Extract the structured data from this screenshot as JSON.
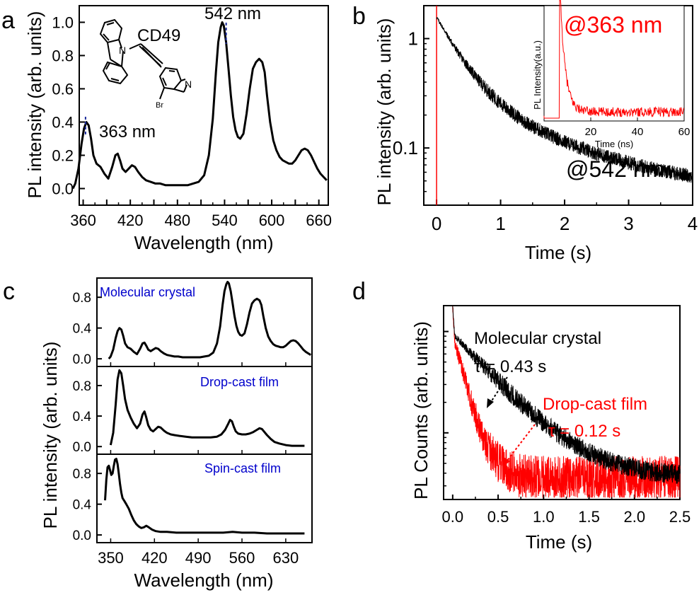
{
  "figure": {
    "panel_labels": [
      "a",
      "b",
      "c",
      "d"
    ]
  },
  "colors": {
    "ink": "#000000",
    "red": "#ff0000",
    "blue": "#0000cc",
    "dash_blue": "#1a2a9a"
  },
  "chart_data": [
    {
      "panel": "a",
      "type": "line",
      "title": "",
      "xlabel": "Wavelength (nm)",
      "ylabel": "PL intensity (arb. units)",
      "xlim": [
        355,
        672
      ],
      "ylim": [
        -0.1,
        1.1
      ],
      "xticks": [
        "360",
        "390",
        "420",
        "450",
        "480",
        "510",
        "540",
        "570",
        "600",
        "630",
        "660"
      ],
      "xtick_values": [
        360,
        390,
        420,
        450,
        480,
        510,
        540,
        570,
        600,
        630,
        660
      ],
      "xtick_labeled": [
        true,
        false,
        true,
        false,
        true,
        false,
        true,
        false,
        true,
        false,
        true
      ],
      "yticks": [
        "0.0",
        "0.2",
        "0.4",
        "0.6",
        "0.8",
        "1.0"
      ],
      "ytick_values": [
        0.0,
        0.2,
        0.4,
        0.6,
        0.8,
        1.0
      ],
      "x": [
        347,
        350,
        354,
        358,
        361,
        364,
        367,
        370,
        373,
        377,
        382,
        387,
        392,
        397,
        401,
        404,
        407,
        410,
        414,
        418,
        422,
        426,
        430,
        435,
        440,
        446,
        452,
        458,
        465,
        472,
        479,
        486,
        493,
        500,
        507,
        514,
        520,
        525,
        529,
        532,
        535,
        537,
        539,
        542,
        545,
        548,
        551,
        554,
        557,
        560,
        564,
        568,
        572,
        576,
        580,
        584,
        588,
        591,
        594,
        598,
        602,
        606,
        610,
        614,
        618,
        622,
        626,
        630,
        634,
        638,
        642,
        646,
        650,
        654,
        658,
        662,
        666,
        670
      ],
      "values": [
        0.0,
        0.03,
        0.12,
        0.27,
        0.36,
        0.4,
        0.38,
        0.3,
        0.2,
        0.15,
        0.13,
        0.09,
        0.06,
        0.13,
        0.2,
        0.21,
        0.17,
        0.12,
        0.1,
        0.12,
        0.14,
        0.13,
        0.1,
        0.07,
        0.05,
        0.04,
        0.03,
        0.03,
        0.02,
        0.02,
        0.02,
        0.02,
        0.02,
        0.03,
        0.04,
        0.08,
        0.2,
        0.42,
        0.7,
        0.88,
        0.97,
        1.0,
        0.98,
        0.88,
        0.72,
        0.56,
        0.43,
        0.35,
        0.31,
        0.3,
        0.33,
        0.45,
        0.6,
        0.72,
        0.76,
        0.78,
        0.76,
        0.7,
        0.56,
        0.4,
        0.29,
        0.23,
        0.19,
        0.17,
        0.16,
        0.15,
        0.15,
        0.17,
        0.2,
        0.23,
        0.24,
        0.23,
        0.2,
        0.16,
        0.12,
        0.09,
        0.07,
        0.05
      ],
      "annotations": [
        "542 nm",
        "363 nm",
        "CD49"
      ],
      "peak_markers_x": [
        363,
        542
      ],
      "molecule_atom_label_br": "Br",
      "molecule_atom_label_n1": "N",
      "molecule_atom_label_n2": "N"
    },
    {
      "panel": "b",
      "type": "line",
      "title": "",
      "xlabel": "Time (s)",
      "ylabel": "PL intensity (arb. units)",
      "yscale": "log",
      "xlim": [
        -0.2,
        4.0
      ],
      "ylim": [
        0.03,
        2.0
      ],
      "xticks": [
        "0",
        "1",
        "2",
        "3",
        "4"
      ],
      "xtick_values": [
        0,
        1,
        2,
        3,
        4
      ],
      "yticks": [
        "0.1",
        "1"
      ],
      "ytick_values": [
        0.1,
        1
      ],
      "series": [
        {
          "name": "@542 nm",
          "color": "#000000",
          "decay": {
            "a1": 1.24,
            "tau1": 0.35,
            "a2": 0.3,
            "tau2": 1.4,
            "offset": 0.038
          },
          "noise": 0.3
        },
        {
          "name": "@363 nm",
          "color": "#ff0000",
          "spike_at": 0.0
        }
      ],
      "annotations": [
        "@542 nm"
      ],
      "inset": {
        "xlabel": "Time (ns)",
        "ylabel": "PL Intensity(a.u.)",
        "xlim": [
          0,
          60
        ],
        "xticks": [
          "0",
          "20",
          "40",
          "60"
        ],
        "xtick_values": [
          0,
          20,
          40,
          60
        ],
        "label": "@363 nm",
        "decay": {
          "t0": 7,
          "tau": 2.2,
          "floor": 0.07
        }
      }
    },
    {
      "panel": "c",
      "type": "line",
      "title": "",
      "xlabel": "Wavelength (nm)",
      "ylabel": "PL intensity (arb. units)",
      "xlim": [
        328,
        672
      ],
      "xticks": [
        "350",
        "420",
        "490",
        "560",
        "630"
      ],
      "xtick_values": [
        350,
        420,
        490,
        560,
        630
      ],
      "ylim": [
        -0.1,
        1.05
      ],
      "yticks": [
        "0.0",
        "0.4",
        "0.8"
      ],
      "ytick_values": [
        0.0,
        0.4,
        0.8
      ],
      "subplots": [
        {
          "name": "Molecular crystal",
          "x": [
            347,
            350,
            354,
            358,
            361,
            364,
            367,
            370,
            373,
            377,
            382,
            387,
            392,
            397,
            401,
            404,
            407,
            410,
            414,
            418,
            422,
            426,
            430,
            435,
            440,
            446,
            452,
            458,
            465,
            472,
            479,
            486,
            493,
            500,
            507,
            514,
            520,
            525,
            529,
            532,
            535,
            537,
            539,
            542,
            545,
            548,
            551,
            554,
            557,
            560,
            564,
            568,
            572,
            576,
            580,
            584,
            588,
            591,
            594,
            598,
            602,
            606,
            610,
            614,
            618,
            622,
            626,
            630,
            634,
            638,
            642,
            646,
            650,
            654,
            658,
            662,
            666,
            670
          ],
          "values": [
            0.0,
            0.03,
            0.12,
            0.27,
            0.36,
            0.4,
            0.38,
            0.3,
            0.2,
            0.15,
            0.13,
            0.09,
            0.06,
            0.13,
            0.2,
            0.21,
            0.17,
            0.12,
            0.1,
            0.12,
            0.14,
            0.13,
            0.1,
            0.07,
            0.05,
            0.04,
            0.03,
            0.03,
            0.02,
            0.02,
            0.02,
            0.02,
            0.02,
            0.03,
            0.04,
            0.08,
            0.2,
            0.42,
            0.7,
            0.88,
            0.97,
            1.0,
            0.98,
            0.88,
            0.72,
            0.56,
            0.43,
            0.35,
            0.31,
            0.3,
            0.33,
            0.45,
            0.6,
            0.72,
            0.76,
            0.78,
            0.76,
            0.7,
            0.56,
            0.4,
            0.29,
            0.23,
            0.19,
            0.17,
            0.16,
            0.15,
            0.15,
            0.17,
            0.2,
            0.23,
            0.24,
            0.23,
            0.2,
            0.16,
            0.12,
            0.09,
            0.07,
            0.05
          ]
        },
        {
          "name": "Drop-cast film",
          "x": [
            350,
            354,
            358,
            361,
            364,
            367,
            370,
            373,
            377,
            382,
            387,
            392,
            397,
            401,
            404,
            407,
            410,
            414,
            418,
            422,
            426,
            430,
            435,
            440,
            446,
            452,
            460,
            470,
            480,
            490,
            500,
            510,
            520,
            527,
            533,
            538,
            541,
            544,
            547,
            550,
            554,
            560,
            566,
            572,
            578,
            584,
            588,
            592,
            596,
            600,
            606,
            612,
            620,
            630,
            640,
            650,
            660
          ],
          "values": [
            0.02,
            0.18,
            0.55,
            0.88,
            1.0,
            0.96,
            0.8,
            0.62,
            0.48,
            0.38,
            0.3,
            0.24,
            0.3,
            0.42,
            0.46,
            0.38,
            0.28,
            0.22,
            0.2,
            0.23,
            0.26,
            0.25,
            0.21,
            0.18,
            0.16,
            0.15,
            0.14,
            0.13,
            0.12,
            0.12,
            0.12,
            0.12,
            0.13,
            0.16,
            0.22,
            0.3,
            0.35,
            0.33,
            0.26,
            0.2,
            0.17,
            0.16,
            0.16,
            0.17,
            0.19,
            0.22,
            0.24,
            0.23,
            0.19,
            0.15,
            0.1,
            0.06,
            0.04,
            0.02,
            0.01,
            0.01,
            0.01
          ]
        },
        {
          "name": "Spin-cast film",
          "x": [
            341,
            343,
            345,
            347,
            349,
            351,
            353,
            355,
            357,
            359,
            361,
            363,
            365,
            367,
            369,
            372,
            375,
            379,
            383,
            387,
            391,
            395,
            399,
            403,
            407,
            411,
            416,
            422,
            430,
            440,
            455,
            470,
            490,
            510,
            530,
            545,
            560,
            580,
            600,
            620,
            640,
            660
          ],
          "values": [
            0.45,
            0.72,
            0.88,
            0.9,
            0.84,
            0.78,
            0.8,
            0.9,
            0.98,
            0.99,
            0.92,
            0.8,
            0.66,
            0.55,
            0.48,
            0.44,
            0.4,
            0.34,
            0.26,
            0.19,
            0.14,
            0.11,
            0.09,
            0.1,
            0.12,
            0.1,
            0.07,
            0.05,
            0.04,
            0.04,
            0.03,
            0.03,
            0.03,
            0.03,
            0.03,
            0.04,
            0.03,
            0.03,
            0.02,
            0.02,
            0.02,
            0.02
          ]
        }
      ]
    },
    {
      "panel": "d",
      "type": "line",
      "title": "",
      "xlabel": "Time (s)",
      "ylabel": "PL Counts (arb. units)",
      "yscale": "log",
      "xlim": [
        -0.1,
        2.5
      ],
      "xticks": [
        "0.0",
        "0.5",
        "1.0",
        "1.5",
        "2.0",
        "2.5"
      ],
      "xtick_values": [
        0.0,
        0.5,
        1.0,
        1.5,
        2.0,
        2.5
      ],
      "series": [
        {
          "name": "Molecular crystal",
          "color": "#000000",
          "tau_label": "τ = 0.43 s",
          "tau": 0.43,
          "offset": 0.036
        },
        {
          "name": "Drop-cast film",
          "color": "#ff0000",
          "tau_label": "τ = 0.12 s",
          "tau": 0.12,
          "offset": 0.036
        }
      ],
      "annotations": [
        "Molecular crystal",
        "τ = 0.43 s",
        "Drop-cast film",
        "τ = 0.12 s"
      ]
    }
  ]
}
